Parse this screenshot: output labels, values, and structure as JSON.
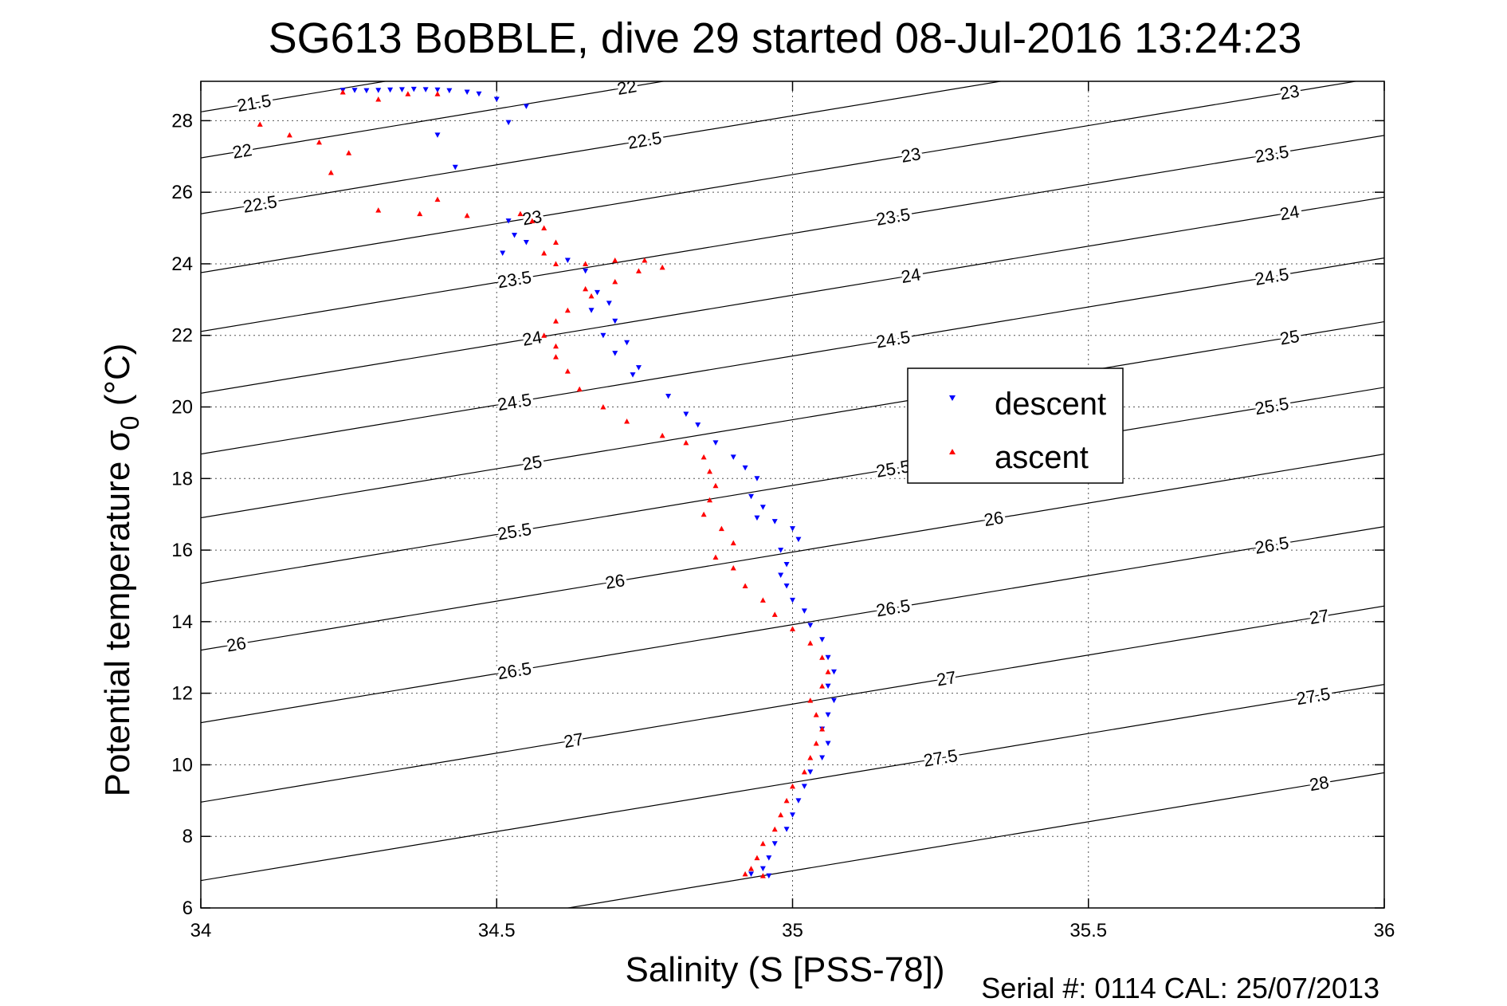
{
  "chart_data": {
    "type": "scatter",
    "title": "SG613 BoBBLE, dive 29 started 08-Jul-2016 13:24:23",
    "xlabel": "Salinity (S [PSS-78])",
    "ylabel_main": "Potential temperature σ",
    "ylabel_sub": "0",
    "ylabel_tail": " (°C)",
    "footer": "Serial #: 0114  CAL: 25/07/2013",
    "xlim": [
      34,
      36
    ],
    "ylim": [
      6,
      29.1
    ],
    "xticks": [
      34,
      34.5,
      35,
      35.5,
      36
    ],
    "xtick_labels": [
      "34",
      "34.5",
      "35",
      "35.5",
      "36"
    ],
    "yticks": [
      6,
      8,
      10,
      12,
      14,
      16,
      18,
      20,
      22,
      24,
      26,
      28
    ],
    "ytick_labels": [
      "6",
      "8",
      "10",
      "12",
      "14",
      "16",
      "18",
      "20",
      "22",
      "24",
      "26",
      "28"
    ],
    "grid": true,
    "legend_position": "right-center",
    "isopycnals": {
      "slope_dT_dS": 2.74,
      "lines": [
        {
          "sigma": 21.5,
          "s_at_28": 33.91,
          "labels": [
            {
              "text": "21.5",
              "x": 34.09
            }
          ]
        },
        {
          "sigma": 22,
          "s_at_28": 34.38,
          "labels": [
            {
              "text": "22",
              "x": 34.07
            },
            {
              "text": "22",
              "x": 34.72
            }
          ]
        },
        {
          "sigma": 22.5,
          "s_at_28": 34.95,
          "labels": [
            {
              "text": "22.5",
              "x": 34.1
            },
            {
              "text": "22.5",
              "x": 34.75
            },
            {
              "text": "22.5",
              "x": 35.39
            }
          ]
        },
        {
          "sigma": 23,
          "s_at_28": 35.55,
          "labels": [
            {
              "text": "23",
              "x": 34.56
            },
            {
              "text": "23",
              "x": 35.2
            },
            {
              "text": "23",
              "x": 35.84
            }
          ]
        },
        {
          "sigma": 23.5,
          "s_at_28": 36.15,
          "labels": [
            {
              "text": "23.5",
              "x": 34.53
            },
            {
              "text": "23.5",
              "x": 35.17
            },
            {
              "text": "23.5",
              "x": 35.81
            }
          ]
        },
        {
          "sigma": 24,
          "s_at_28": 36.78,
          "labels": [
            {
              "text": "24",
              "x": 34.56
            },
            {
              "text": "24",
              "x": 35.2
            },
            {
              "text": "24",
              "x": 35.84
            }
          ]
        },
        {
          "sigma": 24.5,
          "s_at_28": 37.4,
          "labels": [
            {
              "text": "24.5",
              "x": 34.53
            },
            {
              "text": "24.5",
              "x": 35.17
            },
            {
              "text": "24.5",
              "x": 35.81
            }
          ]
        },
        {
          "sigma": 25,
          "s_at_28": 38.05,
          "labels": [
            {
              "text": "25",
              "x": 34.56
            },
            {
              "text": "25",
              "x": 35.84
            }
          ]
        },
        {
          "sigma": 25.5,
          "s_at_28": 38.72,
          "labels": [
            {
              "text": "25.5",
              "x": 34.53
            },
            {
              "text": "25.5",
              "x": 35.17
            },
            {
              "text": "25.5",
              "x": 35.81
            }
          ]
        },
        {
          "sigma": 26,
          "s_at_28": 39.4,
          "labels": [
            {
              "text": "26",
              "x": 34.06
            },
            {
              "text": "26",
              "x": 34.7
            },
            {
              "text": "26",
              "x": 35.34
            }
          ]
        },
        {
          "sigma": 26.5,
          "s_at_28": 40.14,
          "labels": [
            {
              "text": "26.5",
              "x": 34.53
            },
            {
              "text": "26.5",
              "x": 35.17
            },
            {
              "text": "26.5",
              "x": 35.81
            }
          ]
        },
        {
          "sigma": 27,
          "s_at_28": 40.95,
          "labels": [
            {
              "text": "27",
              "x": 34.63
            },
            {
              "text": "27",
              "x": 35.26
            },
            {
              "text": "27",
              "x": 35.89
            }
          ]
        },
        {
          "sigma": 27.5,
          "s_at_28": 41.75,
          "labels": [
            {
              "text": "27.5",
              "x": 35.25
            },
            {
              "text": "27.5",
              "x": 35.88
            }
          ]
        },
        {
          "sigma": 28,
          "s_at_28": 42.65,
          "labels": [
            {
              "text": "28",
              "x": 35.89
            }
          ]
        }
      ]
    },
    "series": [
      {
        "name": "descent",
        "color": "#0000ff",
        "marker": "down-triangle",
        "points": [
          [
            34.24,
            28.85
          ],
          [
            34.26,
            28.85
          ],
          [
            34.28,
            28.84
          ],
          [
            34.3,
            28.85
          ],
          [
            34.32,
            28.86
          ],
          [
            34.34,
            28.87
          ],
          [
            34.36,
            28.88
          ],
          [
            34.38,
            28.87
          ],
          [
            34.4,
            28.86
          ],
          [
            34.42,
            28.84
          ],
          [
            34.45,
            28.8
          ],
          [
            34.47,
            28.75
          ],
          [
            34.5,
            28.6
          ],
          [
            34.55,
            28.4
          ],
          [
            34.52,
            27.95
          ],
          [
            34.4,
            27.6
          ],
          [
            34.43,
            26.7
          ],
          [
            34.52,
            25.2
          ],
          [
            34.53,
            24.8
          ],
          [
            34.51,
            24.3
          ],
          [
            34.55,
            24.6
          ],
          [
            34.62,
            24.1
          ],
          [
            34.65,
            23.8
          ],
          [
            34.67,
            23.2
          ],
          [
            34.69,
            22.9
          ],
          [
            34.66,
            22.7
          ],
          [
            34.7,
            22.4
          ],
          [
            34.68,
            22.0
          ],
          [
            34.72,
            21.8
          ],
          [
            34.7,
            21.5
          ],
          [
            34.73,
            20.9
          ],
          [
            34.74,
            21.1
          ],
          [
            34.79,
            20.3
          ],
          [
            34.82,
            19.8
          ],
          [
            34.84,
            19.5
          ],
          [
            34.87,
            19.0
          ],
          [
            34.9,
            18.6
          ],
          [
            34.92,
            18.3
          ],
          [
            34.94,
            18.0
          ],
          [
            34.93,
            17.5
          ],
          [
            34.95,
            17.2
          ],
          [
            34.94,
            16.9
          ],
          [
            34.97,
            16.8
          ],
          [
            35.0,
            16.6
          ],
          [
            35.01,
            16.3
          ],
          [
            34.98,
            16.0
          ],
          [
            34.99,
            15.6
          ],
          [
            34.98,
            15.3
          ],
          [
            34.99,
            15.0
          ],
          [
            35.0,
            14.6
          ],
          [
            35.02,
            14.3
          ],
          [
            35.03,
            13.9
          ],
          [
            35.05,
            13.5
          ],
          [
            35.06,
            13.0
          ],
          [
            35.07,
            12.6
          ],
          [
            35.06,
            12.2
          ],
          [
            35.07,
            11.8
          ],
          [
            35.06,
            11.4
          ],
          [
            35.05,
            11.0
          ],
          [
            35.06,
            10.6
          ],
          [
            35.05,
            10.2
          ],
          [
            35.03,
            9.8
          ],
          [
            35.02,
            9.4
          ],
          [
            35.01,
            9.0
          ],
          [
            35.0,
            8.6
          ],
          [
            34.99,
            8.2
          ],
          [
            34.97,
            7.8
          ],
          [
            34.96,
            7.4
          ],
          [
            34.95,
            7.1
          ],
          [
            34.93,
            6.95
          ],
          [
            34.96,
            6.9
          ]
        ]
      },
      {
        "name": "ascent",
        "color": "#ff0000",
        "marker": "up-triangle",
        "points": [
          [
            34.24,
            28.8
          ],
          [
            34.3,
            28.6
          ],
          [
            34.35,
            28.75
          ],
          [
            34.4,
            28.75
          ],
          [
            34.1,
            27.9
          ],
          [
            34.15,
            27.6
          ],
          [
            34.2,
            27.4
          ],
          [
            34.25,
            27.1
          ],
          [
            34.22,
            26.55
          ],
          [
            34.3,
            25.5
          ],
          [
            34.37,
            25.4
          ],
          [
            34.45,
            25.35
          ],
          [
            34.4,
            25.8
          ],
          [
            34.54,
            25.4
          ],
          [
            34.56,
            25.2
          ],
          [
            34.58,
            25.0
          ],
          [
            34.6,
            24.6
          ],
          [
            34.58,
            24.3
          ],
          [
            34.6,
            24.0
          ],
          [
            34.65,
            24.0
          ],
          [
            34.7,
            24.1
          ],
          [
            34.75,
            24.1
          ],
          [
            34.78,
            23.9
          ],
          [
            34.74,
            23.8
          ],
          [
            34.7,
            23.5
          ],
          [
            34.65,
            23.3
          ],
          [
            34.66,
            23.1
          ],
          [
            34.62,
            22.7
          ],
          [
            34.6,
            22.4
          ],
          [
            34.58,
            22.0
          ],
          [
            34.6,
            21.7
          ],
          [
            34.6,
            21.4
          ],
          [
            34.62,
            21.0
          ],
          [
            34.64,
            20.5
          ],
          [
            34.68,
            20.0
          ],
          [
            34.72,
            19.6
          ],
          [
            34.78,
            19.2
          ],
          [
            34.82,
            19.0
          ],
          [
            34.85,
            18.6
          ],
          [
            34.86,
            18.2
          ],
          [
            34.87,
            17.8
          ],
          [
            34.86,
            17.4
          ],
          [
            34.85,
            17.0
          ],
          [
            34.88,
            16.6
          ],
          [
            34.9,
            16.2
          ],
          [
            34.87,
            15.8
          ],
          [
            34.9,
            15.5
          ],
          [
            34.92,
            15.0
          ],
          [
            34.95,
            14.6
          ],
          [
            34.97,
            14.2
          ],
          [
            35.0,
            13.8
          ],
          [
            35.03,
            13.4
          ],
          [
            35.05,
            13.0
          ],
          [
            35.06,
            12.6
          ],
          [
            35.05,
            12.2
          ],
          [
            35.03,
            11.8
          ],
          [
            35.04,
            11.4
          ],
          [
            35.05,
            11.0
          ],
          [
            35.04,
            10.6
          ],
          [
            35.03,
            10.2
          ],
          [
            35.02,
            9.8
          ],
          [
            35.0,
            9.4
          ],
          [
            34.99,
            9.0
          ],
          [
            34.98,
            8.6
          ],
          [
            34.97,
            8.2
          ],
          [
            34.95,
            7.8
          ],
          [
            34.94,
            7.4
          ],
          [
            34.93,
            7.1
          ],
          [
            34.92,
            6.95
          ],
          [
            34.95,
            6.9
          ]
        ]
      }
    ]
  }
}
